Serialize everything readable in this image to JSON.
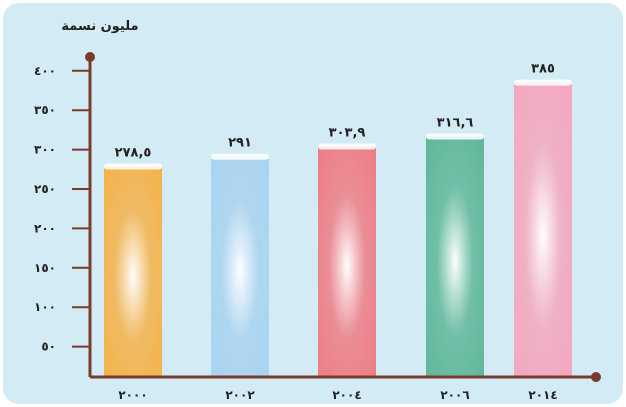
{
  "chart_data": {
    "type": "bar",
    "title": "",
    "ylabel": "مليون نسمة",
    "xlabel": "",
    "categories": [
      "٢٠٠٠",
      "٢٠٠٢",
      "٢٠٠٤",
      "٢٠٠٦",
      "٢٠١٤"
    ],
    "values": [
      278.5,
      291,
      303.9,
      316.6,
      385
    ],
    "value_labels": [
      "٢٧٨,٥",
      "٢٩١",
      "٣٠٣,٩",
      "٣١٦,٦",
      "٣٨٥"
    ],
    "yticks": [
      50,
      100,
      150,
      200,
      250,
      300,
      350,
      400
    ],
    "ytick_labels": [
      "٥٠",
      "١٠٠",
      "١٥٠",
      "٢٠٠",
      "٢٥٠",
      "٣٠٠",
      "٣٥٠",
      "٤٠٠"
    ],
    "ylim": [
      0,
      400
    ],
    "grid": false,
    "legend": "none",
    "colors": {
      "background": "#d3ebf5",
      "axis": "#7a3b2e",
      "bars": [
        "#f5b24a",
        "#a9d3ef",
        "#ee7d85",
        "#5fb79a",
        "#f4a7bd"
      ]
    }
  }
}
